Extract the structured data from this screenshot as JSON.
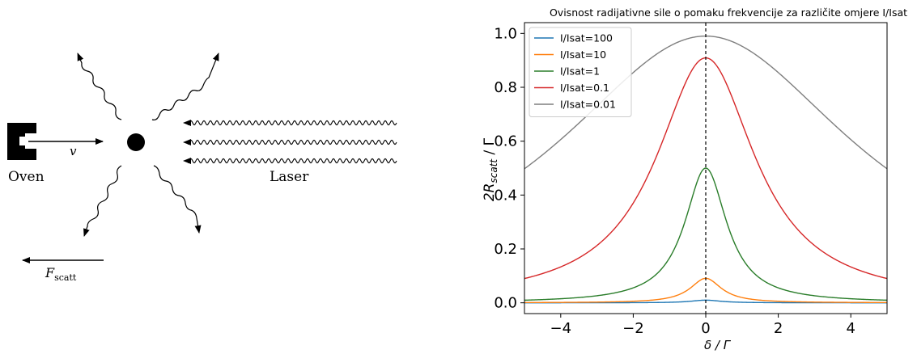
{
  "diagram": {
    "oven_label": "Oven",
    "velocity_label": "v",
    "laser_label": "Laser",
    "force_label_main": "F",
    "force_label_sub": "scatt"
  },
  "chart_data": {
    "type": "line",
    "title": "Ovisnost radijativne sile o pomaku frekvencije za različite omjere I/Isat",
    "xlabel": "δ / Γ",
    "ylabel_main": "2R",
    "ylabel_sub": "scatt",
    "ylabel_tail": " / Γ",
    "xlim": [
      -5,
      5
    ],
    "ylim": [
      -0.04,
      1.04
    ],
    "xticks": [
      -4,
      -2,
      0,
      2,
      4
    ],
    "yticks": [
      0.0,
      0.2,
      0.4,
      0.6,
      0.8,
      1.0
    ],
    "xtick_labels": [
      "−4",
      "−2",
      "0",
      "2",
      "4"
    ],
    "ytick_labels": [
      "0.0",
      "0.2",
      "0.4",
      "0.6",
      "0.8",
      "1.0"
    ],
    "legend_position": "top-left",
    "vline_x": 0,
    "series": [
      {
        "name": "I/Isat=100",
        "s": 0.01,
        "color": "#1f77b4"
      },
      {
        "name": "I/Isat=10",
        "s": 0.1,
        "color": "#ff7f0e"
      },
      {
        "name": "I/Isat=1",
        "s": 1,
        "color": "#2a7d2a"
      },
      {
        "name": "I/Isat=0.1",
        "s": 10,
        "color": "#d62728"
      },
      {
        "name": "I/Isat=0.01",
        "s": 100,
        "color": "#7f7f7f"
      }
    ]
  }
}
